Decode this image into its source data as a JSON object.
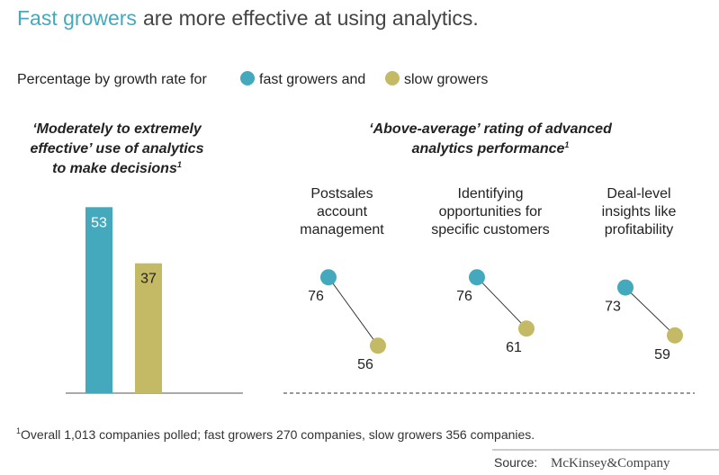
{
  "title_highlight": "Fast growers",
  "title": "are more effective at using analytics.",
  "subtitle": "Percentage by growth rate for",
  "legend": [
    {
      "name": "fast growers and",
      "color": "#45a9bd"
    },
    {
      "name": "slow growers",
      "color": "#c4b964"
    }
  ],
  "chart_data": [
    {
      "type": "bar",
      "title": [
        "‘Moderately to extremely",
        "effective’ use of analytics",
        "to make decisions"
      ],
      "title_note": "1",
      "series": [
        {
          "color": "#45a9bd",
          "values": [
            53
          ]
        },
        {
          "color": "#c4b964",
          "values": [
            37
          ]
        }
      ]
    },
    {
      "type": "dot",
      "title": [
        "‘Above-average’ rating of advanced",
        "analytics performance"
      ],
      "title_note": "1",
      "categories": [
        [
          "Postsales",
          "account",
          "management"
        ],
        [
          "Identifying",
          "opportunities for",
          "specific customers"
        ],
        [
          "Deal-level",
          "insights like",
          "profitability"
        ]
      ],
      "series": [
        {
          "color": "#45a9bd",
          "values": [
            76,
            76,
            73
          ]
        },
        {
          "color": "#c4b964",
          "values": [
            56,
            61,
            59
          ]
        }
      ]
    }
  ],
  "footnote_marker": "1",
  "footnote": "Overall 1,013 companies polled; fast growers 270 companies, slow growers 356 companies.",
  "source_label": "Source:",
  "source": "McKinsey&Company"
}
